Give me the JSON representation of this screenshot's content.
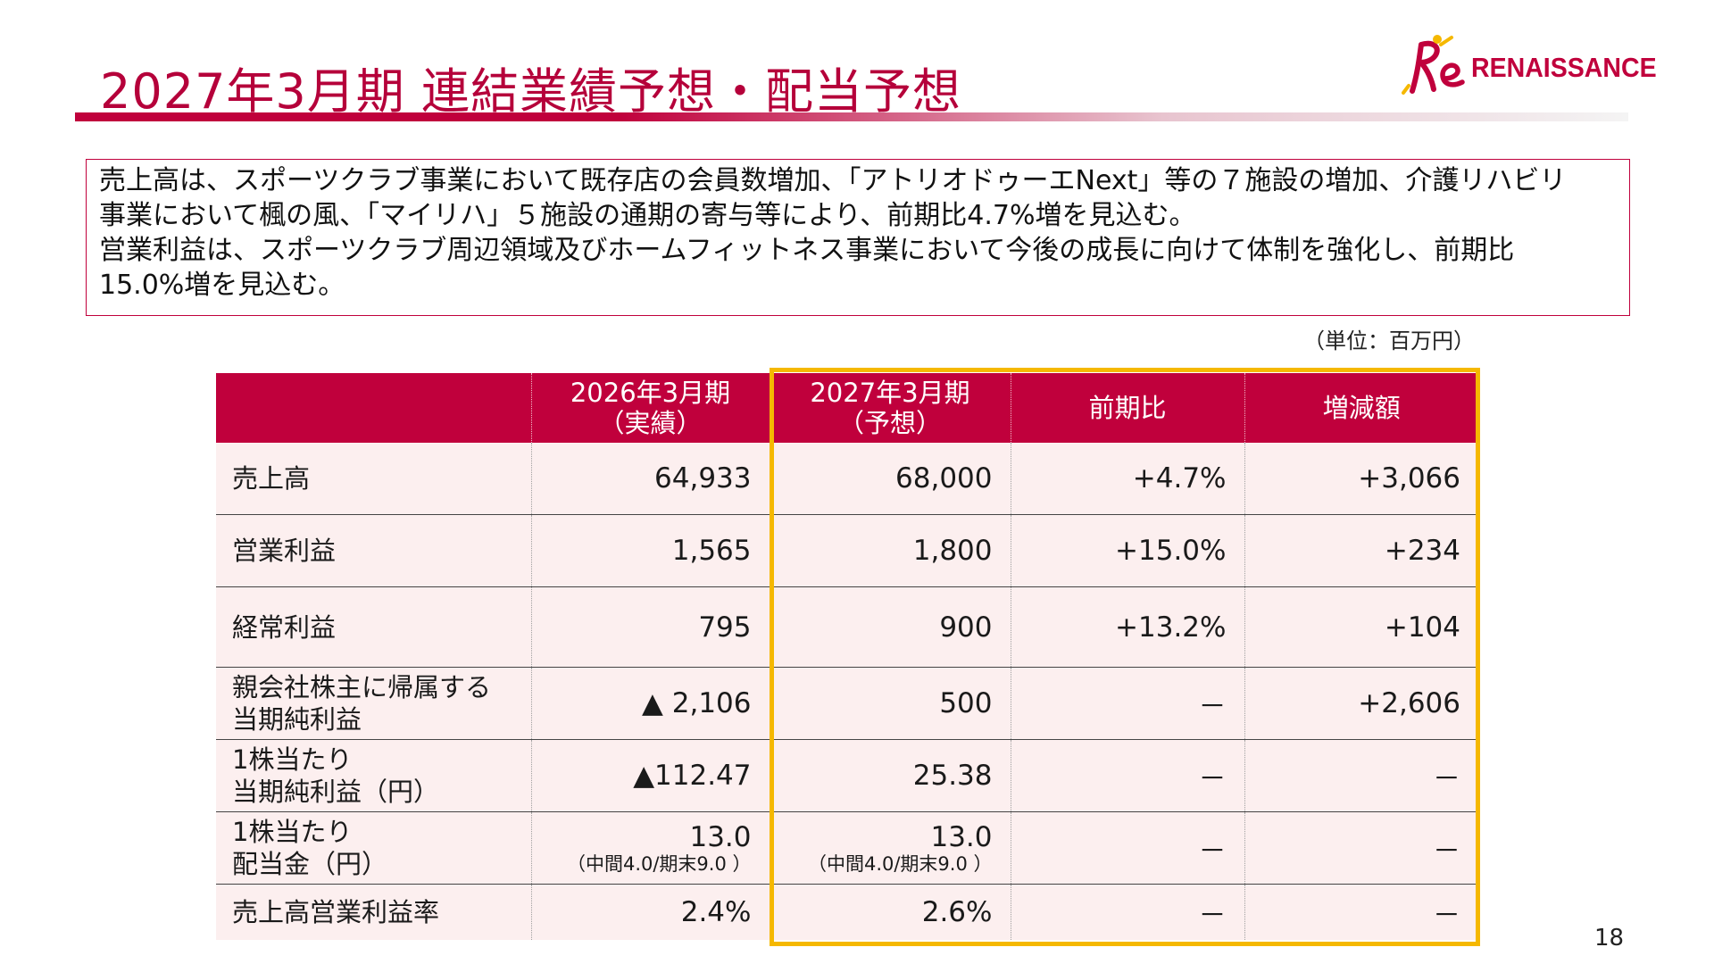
{
  "header": {
    "title": "2027年3月期 連結業績予想・配当予想"
  },
  "logo": {
    "text": "RENAISSANCE",
    "icon": "re-runner-logo-icon",
    "brand_color": "#c0003c"
  },
  "summary": {
    "lines": [
      "売上高は、スポーツクラブ事業において既存店の会員数増加、「アトリオドゥーエNext」等の７施設の増加、介護リハビリ",
      "事業において楓の風、「マイリハ」５施設の通期の寄与等により、前期比4.7%増を見込む。",
      "営業利益は、スポーツクラブ周辺領域及びホームフィットネス事業において今後の成長に向けて体制を強化し、前期比",
      "15.0%増を見込む。"
    ]
  },
  "unit_label": "（単位：百万円）",
  "table": {
    "headers": [
      {
        "line1": "",
        "line2": ""
      },
      {
        "line1": "2026年3月期",
        "line2": "（実績）"
      },
      {
        "line1": "2027年3月期",
        "line2": "（予想）"
      },
      {
        "line1": "前期比",
        "line2": ""
      },
      {
        "line1": "増減額",
        "line2": ""
      }
    ],
    "rows": [
      {
        "label1": "売上高",
        "label2": "",
        "prev": "64,933",
        "prev_note": "",
        "fcst": "68,000",
        "fcst_note": "",
        "yoy": "+4.7%",
        "diff": "+3,066"
      },
      {
        "label1": "営業利益",
        "label2": "",
        "prev": "1,565",
        "prev_note": "",
        "fcst": "1,800",
        "fcst_note": "",
        "yoy": "+15.0%",
        "diff": "+234"
      },
      {
        "label1": "経常利益",
        "label2": "",
        "prev": "795",
        "prev_note": "",
        "fcst": "900",
        "fcst_note": "",
        "yoy": "+13.2%",
        "diff": "+104"
      },
      {
        "label1": "親会社株主に帰属する",
        "label2": "当期純利益",
        "prev": "▲ 2,106",
        "prev_note": "",
        "fcst": "500",
        "fcst_note": "",
        "yoy": "－",
        "diff": "+2,606"
      },
      {
        "label1": "1株当たり",
        "label2": "当期純利益（円）",
        "prev": "▲112.47",
        "prev_note": "",
        "fcst": "25.38",
        "fcst_note": "",
        "yoy": "－",
        "diff": "－"
      },
      {
        "label1": "1株当たり",
        "label2": "配当金（円）",
        "prev": "13.0",
        "prev_note": "（中間4.0/期末9.0 ）",
        "fcst": "13.0",
        "fcst_note": "（中間4.0/期末9.0 ）",
        "yoy": "－",
        "diff": "－"
      },
      {
        "label1": "売上高営業利益率",
        "label2": "",
        "prev": "2.4%",
        "prev_note": "",
        "fcst": "2.6%",
        "fcst_note": "",
        "yoy": "－",
        "diff": "－"
      }
    ],
    "highlight_color": "#f5b800",
    "header_color": "#c0003c",
    "row_bg_color": "#fcefef"
  },
  "page_number": "18"
}
